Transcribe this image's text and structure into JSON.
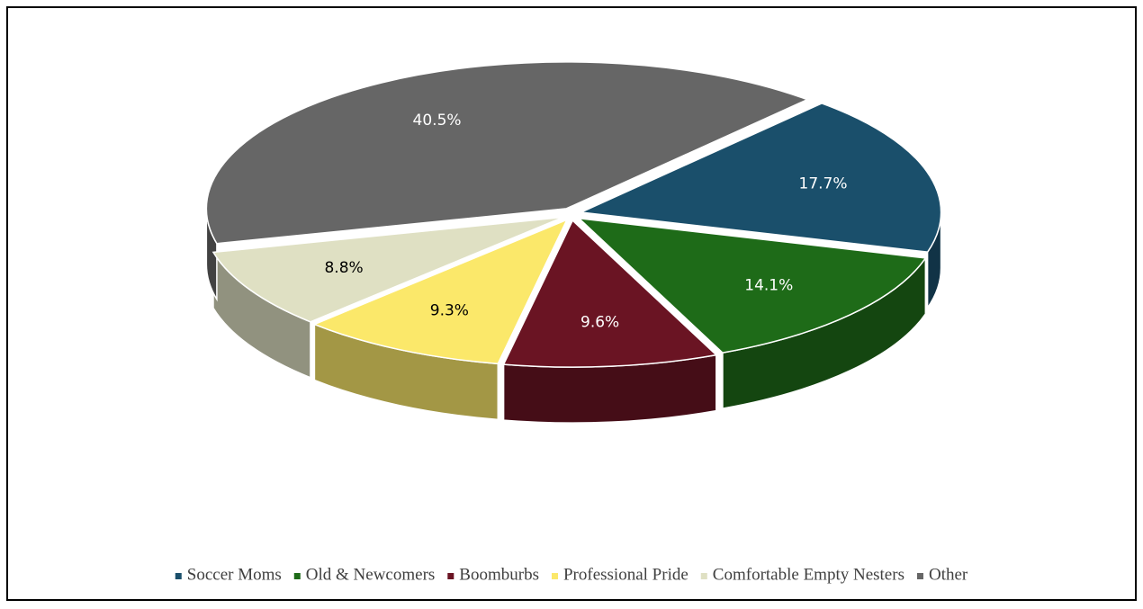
{
  "chart_data": {
    "type": "pie",
    "categories": [
      "Soccer Moms",
      "Old & Newcomers",
      "Boomburbs",
      "Professional Pride",
      "Comfortable Empty Nesters",
      "Other"
    ],
    "values": [
      17.7,
      14.1,
      9.6,
      9.3,
      8.8,
      40.5
    ],
    "value_labels": [
      "17.7%",
      "14.1%",
      "9.6%",
      "9.3%",
      "8.8%",
      "40.5%"
    ],
    "colors": [
      "#1a4f6b",
      "#1e6b18",
      "#6a1423",
      "#fbe86a",
      "#dfe0c3",
      "#666666"
    ],
    "legend": "bottom"
  }
}
